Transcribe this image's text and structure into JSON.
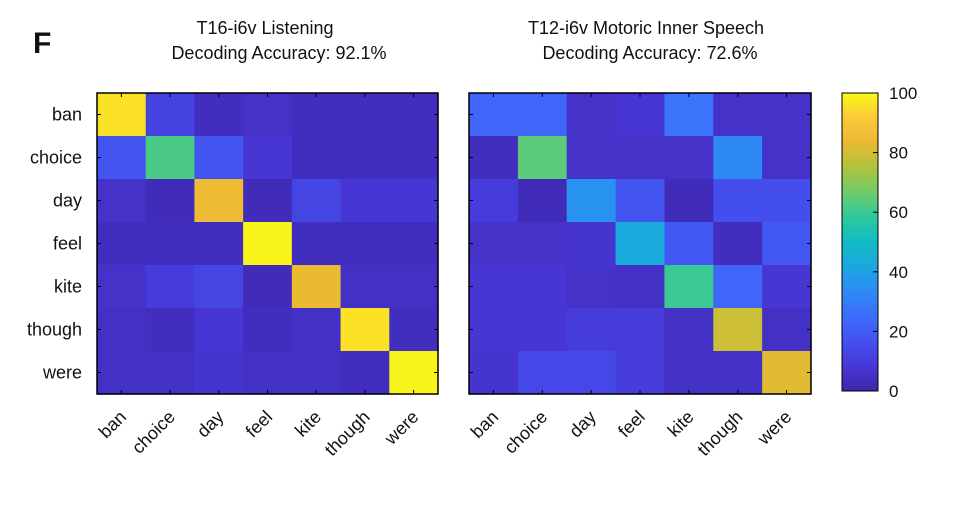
{
  "panel_label": "F",
  "colormap": {
    "name": "parula",
    "min": 0,
    "max": 100,
    "stops": [
      "#3e26a8",
      "#4737d6",
      "#4450ef",
      "#3d6dfb",
      "#2d8af5",
      "#1ca7e0",
      "#12bcc4",
      "#2dc99c",
      "#70cb6b",
      "#b1c33b",
      "#e9b932",
      "#fdc83a",
      "#f9fa14"
    ]
  },
  "colorbar": {
    "ticks": [
      "0",
      "20",
      "40",
      "60",
      "80",
      "100"
    ]
  },
  "chart_data": [
    {
      "type": "heatmap",
      "title_line1": "T16-i6v Listening",
      "title_line2": "Decoding Accuracy: 92.1%",
      "rows": [
        "ban",
        "choice",
        "day",
        "feel",
        "kite",
        "though",
        "were"
      ],
      "cols": [
        "ban",
        "choice",
        "day",
        "feel",
        "kite",
        "though",
        "were"
      ],
      "values": [
        [
          96,
          12,
          4,
          6,
          4,
          4,
          4
        ],
        [
          18,
          62,
          18,
          8,
          4,
          4,
          4
        ],
        [
          6,
          3,
          85,
          3,
          13,
          8,
          8
        ],
        [
          4,
          4,
          4,
          99,
          4,
          4,
          4
        ],
        [
          6,
          10,
          13,
          3,
          84,
          5,
          5
        ],
        [
          5,
          4,
          8,
          4,
          5,
          96,
          4
        ],
        [
          5,
          5,
          7,
          5,
          5,
          4,
          99
        ]
      ],
      "zlim": [
        0,
        100
      ]
    },
    {
      "type": "heatmap",
      "title_line1": "T12-i6v Motoric Inner Speech",
      "title_line2": "Decoding Accuracy: 72.6%",
      "rows": [
        "ban",
        "choice",
        "day",
        "feel",
        "kite",
        "though",
        "were"
      ],
      "cols": [
        "ban",
        "choice",
        "day",
        "feel",
        "kite",
        "though",
        "were"
      ],
      "values": [
        [
          23,
          23,
          6,
          8,
          27,
          6,
          6
        ],
        [
          4,
          64,
          6,
          6,
          6,
          33,
          6
        ],
        [
          10,
          3,
          36,
          18,
          3,
          16,
          16
        ],
        [
          6,
          6,
          7,
          43,
          19,
          4,
          19
        ],
        [
          8,
          8,
          6,
          5,
          60,
          23,
          8
        ],
        [
          8,
          8,
          10,
          10,
          5,
          79,
          5
        ],
        [
          7,
          14,
          14,
          10,
          5,
          5,
          82
        ]
      ],
      "zlim": [
        0,
        100
      ]
    }
  ]
}
